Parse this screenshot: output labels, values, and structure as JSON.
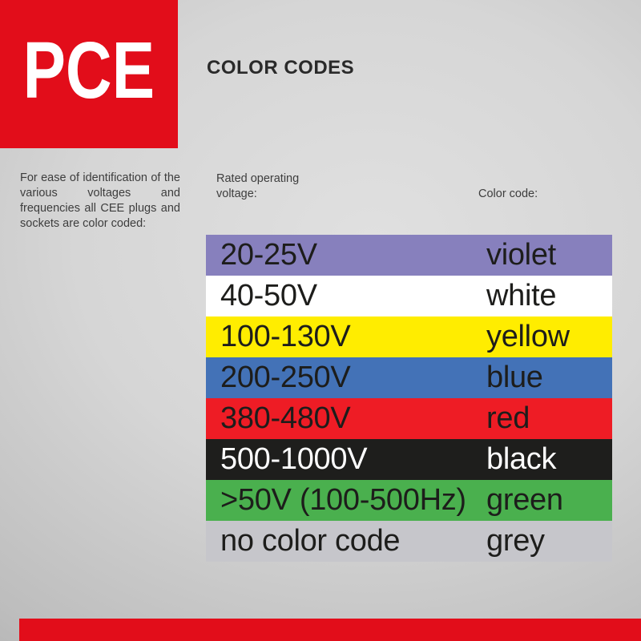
{
  "brand": {
    "logo_text": "PCE",
    "brand_red": "#e20d1a"
  },
  "header": {
    "title": "COLOR CODES"
  },
  "intro": {
    "text": "For ease of identification of the various voltages and frequencies all CEE plugs and sockets are color coded:"
  },
  "table": {
    "voltage_header": "Rated operating voltage:",
    "color_header": "Color code:",
    "rows": [
      {
        "voltage": "20-25V",
        "color_name": "violet",
        "bg": "#8780bd",
        "text_color": "#1d1d1b"
      },
      {
        "voltage": "40-50V",
        "color_name": "white",
        "bg": "#ffffff",
        "text_color": "#1d1d1b"
      },
      {
        "voltage": "100-130V",
        "color_name": "yellow",
        "bg": "#ffed00",
        "text_color": "#1d1d1b"
      },
      {
        "voltage": "200-250V",
        "color_name": "blue",
        "bg": "#4372b7",
        "text_color": "#1d1d1b"
      },
      {
        "voltage": "380-480V",
        "color_name": "red",
        "bg": "#ee1c25",
        "text_color": "#1d1d1b"
      },
      {
        "voltage": "500-1000V",
        "color_name": "black",
        "bg": "#1e1e1c",
        "text_color": "#ffffff"
      },
      {
        "voltage": ">50V (100-500Hz)",
        "color_name": "green",
        "bg": "#4ab04e",
        "text_color": "#1d1d1b"
      },
      {
        "voltage": "no color code",
        "color_name": "grey",
        "bg": "#c6c6cb",
        "text_color": "#1d1d1b"
      }
    ]
  }
}
